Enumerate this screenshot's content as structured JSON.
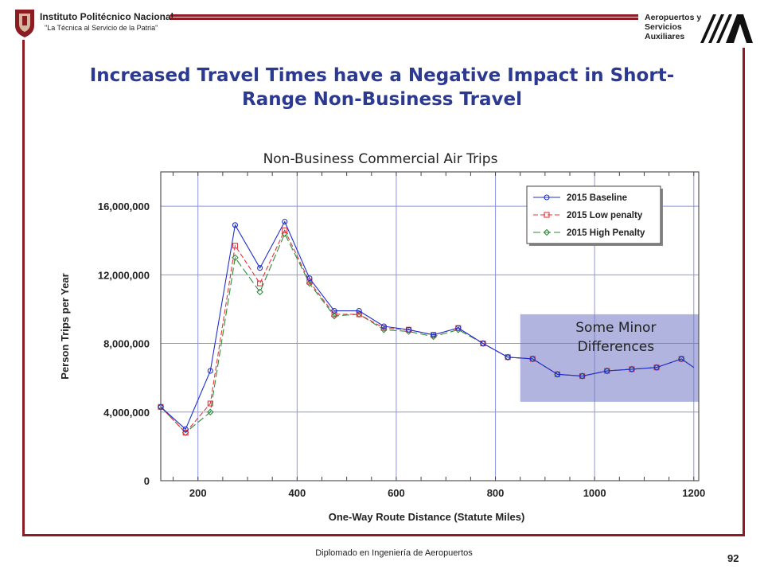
{
  "header": {
    "institution_name": "Instituto Politécnico Nacional",
    "institution_motto": "\"La Técnica al Servicio de la Patria\"",
    "partner_line1": "Aeropuertos y",
    "partner_line2": "Servicios",
    "partner_line3": "Auxiliares"
  },
  "slide": {
    "title_line1": "Increased Travel Times have a Negative Impact in Short-",
    "title_line2": "Range Non-Business Travel",
    "footer": "Diplomado en Ingeniería de Aeropuertos",
    "page_number": "92"
  },
  "chart_data": {
    "type": "line",
    "title": "Non-Business Commercial Air Trips",
    "xlabel": "One-Way Route Distance (Statute Miles)",
    "ylabel": "Person Trips per Year",
    "xlim": [
      125,
      1210
    ],
    "ylim": [
      0,
      18000000
    ],
    "xticks": [
      200,
      400,
      600,
      800,
      1000,
      1200
    ],
    "yticks": [
      0,
      4000000,
      8000000,
      12000000,
      16000000
    ],
    "ytick_labels": [
      "0",
      "4,000,000",
      "8,000,000",
      "12,000,000",
      "16,000,000"
    ],
    "grid": true,
    "legend_position": "top-right",
    "x": [
      125,
      175,
      225,
      275,
      325,
      375,
      425,
      475,
      525,
      575,
      625,
      675,
      725,
      775,
      825,
      875,
      925,
      975,
      1025,
      1075,
      1125,
      1175,
      1200
    ],
    "series": [
      {
        "name": "2015 Baseline",
        "color": "#1f2fd1",
        "marker": "circle",
        "dash": "solid",
        "values": [
          4300000,
          3000000,
          6400000,
          14900000,
          12400000,
          15100000,
          11800000,
          9900000,
          9900000,
          9000000,
          8800000,
          8500000,
          8900000,
          8000000,
          7200000,
          7100000,
          6200000,
          6100000,
          6400000,
          6500000,
          6600000,
          7100000,
          6600000
        ]
      },
      {
        "name": "2015 Low penalty",
        "color": "#e8343a",
        "marker": "square",
        "dash": "6,3",
        "values": [
          4300000,
          2800000,
          4500000,
          13700000,
          11500000,
          14600000,
          11600000,
          9700000,
          9700000,
          8900000,
          8800000,
          8500000,
          8900000,
          8000000,
          7200000,
          7100000,
          6200000,
          6100000,
          6400000,
          6500000,
          6600000,
          7100000,
          6600000
        ]
      },
      {
        "name": "2015 High Penalty",
        "color": "#2e8b3a",
        "marker": "diamond",
        "dash": "9,4",
        "values": [
          4300000,
          2800000,
          4000000,
          13000000,
          11000000,
          14400000,
          11500000,
          9600000,
          9700000,
          8800000,
          8700000,
          8400000,
          8800000,
          8000000,
          7200000,
          7100000,
          6200000,
          6100000,
          6400000,
          6500000,
          6600000,
          7100000,
          6600000
        ]
      }
    ],
    "annotation": {
      "text_line1": "Some Minor",
      "text_line2": "Differences",
      "x_range": [
        850,
        1210
      ],
      "y_range": [
        4600000,
        9700000
      ],
      "color": "#7077c2"
    }
  }
}
